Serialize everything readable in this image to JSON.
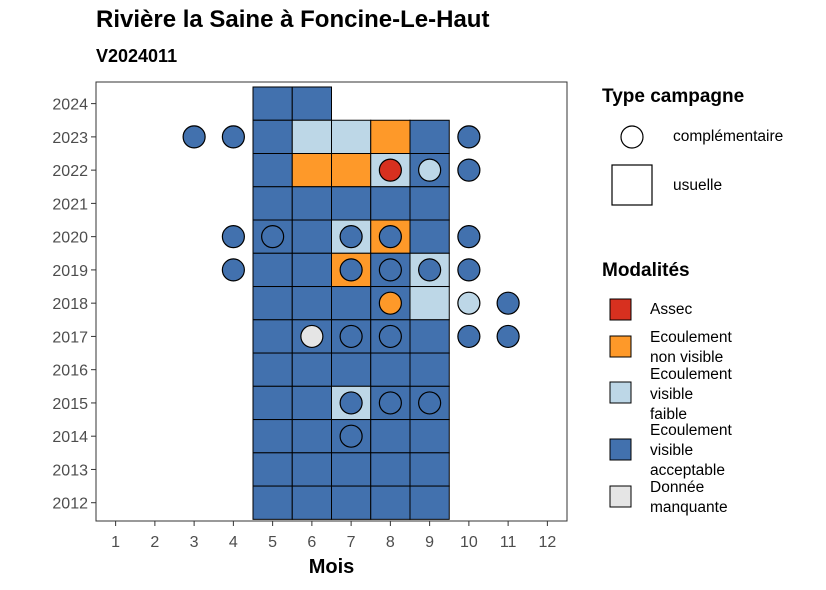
{
  "chart_data": {
    "type": "heatmap",
    "title": "Rivière la Saine à Foncine-Le-Haut",
    "subtitle": "V2024011",
    "xlabel": "Mois",
    "ylabel": "",
    "x_ticks": [
      1,
      2,
      3,
      4,
      5,
      6,
      7,
      8,
      9,
      10,
      11,
      12
    ],
    "y_ticks": [
      2012,
      2013,
      2014,
      2015,
      2016,
      2017,
      2018,
      2019,
      2020,
      2021,
      2022,
      2023,
      2024
    ],
    "xlim": [
      0.5,
      12.5
    ],
    "ylim": [
      2011.45,
      2024.65
    ],
    "grid": false,
    "legend_position": "right",
    "modalites": {
      "assec": {
        "label": "Assec",
        "color": "#d7301f"
      },
      "nv": {
        "label": "Ecoulement non visible",
        "color": "#fe9929"
      },
      "vf": {
        "label": "Ecoulement visible faible",
        "color": "#bdd7e7"
      },
      "va": {
        "label": "Ecoulement visible acceptable",
        "color": "#4271ae"
      },
      "dm": {
        "label": "Donnée manquante",
        "color": "#e5e5e5"
      }
    },
    "campagne_legend": {
      "title": "Type campagne",
      "items": [
        {
          "key": "complementaire",
          "label": "complémentaire",
          "shape": "circle"
        },
        {
          "key": "usuelle",
          "label": "usuelle",
          "shape": "square"
        }
      ]
    },
    "modalites_legend": {
      "title": "Modalités",
      "items": [
        {
          "key": "assec",
          "lines": [
            "Assec"
          ]
        },
        {
          "key": "nv",
          "lines": [
            "Ecoulement",
            "non visible"
          ]
        },
        {
          "key": "vf",
          "lines": [
            "Ecoulement",
            "visible",
            "faible"
          ]
        },
        {
          "key": "va",
          "lines": [
            "Ecoulement",
            "visible",
            "acceptable"
          ]
        },
        {
          "key": "dm",
          "lines": [
            "Donnée",
            "manquante"
          ]
        }
      ]
    },
    "usuelle": [
      {
        "year": 2024,
        "month": 5,
        "modalite": "va"
      },
      {
        "year": 2024,
        "month": 6,
        "modalite": "va"
      },
      {
        "year": 2023,
        "month": 5,
        "modalite": "va"
      },
      {
        "year": 2023,
        "month": 6,
        "modalite": "vf"
      },
      {
        "year": 2023,
        "month": 7,
        "modalite": "vf"
      },
      {
        "year": 2023,
        "month": 8,
        "modalite": "nv"
      },
      {
        "year": 2023,
        "month": 9,
        "modalite": "va"
      },
      {
        "year": 2022,
        "month": 5,
        "modalite": "va"
      },
      {
        "year": 2022,
        "month": 6,
        "modalite": "nv"
      },
      {
        "year": 2022,
        "month": 7,
        "modalite": "nv"
      },
      {
        "year": 2022,
        "month": 8,
        "modalite": "vf"
      },
      {
        "year": 2022,
        "month": 9,
        "modalite": "va"
      },
      {
        "year": 2021,
        "month": 5,
        "modalite": "va"
      },
      {
        "year": 2021,
        "month": 6,
        "modalite": "va"
      },
      {
        "year": 2021,
        "month": 7,
        "modalite": "va"
      },
      {
        "year": 2021,
        "month": 8,
        "modalite": "va"
      },
      {
        "year": 2021,
        "month": 9,
        "modalite": "va"
      },
      {
        "year": 2020,
        "month": 5,
        "modalite": "va"
      },
      {
        "year": 2020,
        "month": 6,
        "modalite": "va"
      },
      {
        "year": 2020,
        "month": 7,
        "modalite": "vf"
      },
      {
        "year": 2020,
        "month": 8,
        "modalite": "nv"
      },
      {
        "year": 2020,
        "month": 9,
        "modalite": "va"
      },
      {
        "year": 2019,
        "month": 5,
        "modalite": "va"
      },
      {
        "year": 2019,
        "month": 6,
        "modalite": "va"
      },
      {
        "year": 2019,
        "month": 7,
        "modalite": "nv"
      },
      {
        "year": 2019,
        "month": 8,
        "modalite": "va"
      },
      {
        "year": 2019,
        "month": 9,
        "modalite": "vf"
      },
      {
        "year": 2018,
        "month": 5,
        "modalite": "va"
      },
      {
        "year": 2018,
        "month": 6,
        "modalite": "va"
      },
      {
        "year": 2018,
        "month": 7,
        "modalite": "va"
      },
      {
        "year": 2018,
        "month": 8,
        "modalite": "va"
      },
      {
        "year": 2018,
        "month": 9,
        "modalite": "vf"
      },
      {
        "year": 2017,
        "month": 5,
        "modalite": "va"
      },
      {
        "year": 2017,
        "month": 6,
        "modalite": "va"
      },
      {
        "year": 2017,
        "month": 7,
        "modalite": "va"
      },
      {
        "year": 2017,
        "month": 8,
        "modalite": "va"
      },
      {
        "year": 2017,
        "month": 9,
        "modalite": "va"
      },
      {
        "year": 2016,
        "month": 5,
        "modalite": "va"
      },
      {
        "year": 2016,
        "month": 6,
        "modalite": "va"
      },
      {
        "year": 2016,
        "month": 7,
        "modalite": "va"
      },
      {
        "year": 2016,
        "month": 8,
        "modalite": "va"
      },
      {
        "year": 2016,
        "month": 9,
        "modalite": "va"
      },
      {
        "year": 2015,
        "month": 5,
        "modalite": "va"
      },
      {
        "year": 2015,
        "month": 6,
        "modalite": "va"
      },
      {
        "year": 2015,
        "month": 7,
        "modalite": "vf"
      },
      {
        "year": 2015,
        "month": 8,
        "modalite": "va"
      },
      {
        "year": 2015,
        "month": 9,
        "modalite": "va"
      },
      {
        "year": 2014,
        "month": 5,
        "modalite": "va"
      },
      {
        "year": 2014,
        "month": 6,
        "modalite": "va"
      },
      {
        "year": 2014,
        "month": 7,
        "modalite": "va"
      },
      {
        "year": 2014,
        "month": 8,
        "modalite": "va"
      },
      {
        "year": 2014,
        "month": 9,
        "modalite": "va"
      },
      {
        "year": 2013,
        "month": 5,
        "modalite": "va"
      },
      {
        "year": 2013,
        "month": 6,
        "modalite": "va"
      },
      {
        "year": 2013,
        "month": 7,
        "modalite": "va"
      },
      {
        "year": 2013,
        "month": 8,
        "modalite": "va"
      },
      {
        "year": 2013,
        "month": 9,
        "modalite": "va"
      },
      {
        "year": 2012,
        "month": 5,
        "modalite": "va"
      },
      {
        "year": 2012,
        "month": 6,
        "modalite": "va"
      },
      {
        "year": 2012,
        "month": 7,
        "modalite": "va"
      },
      {
        "year": 2012,
        "month": 8,
        "modalite": "va"
      },
      {
        "year": 2012,
        "month": 9,
        "modalite": "va"
      }
    ],
    "complementaire": [
      {
        "year": 2023,
        "month": 3,
        "modalite": "va"
      },
      {
        "year": 2023,
        "month": 4,
        "modalite": "va"
      },
      {
        "year": 2023,
        "month": 10,
        "modalite": "va"
      },
      {
        "year": 2022,
        "month": 8,
        "modalite": "assec"
      },
      {
        "year": 2022,
        "month": 9,
        "modalite": "vf"
      },
      {
        "year": 2022,
        "month": 10,
        "modalite": "va"
      },
      {
        "year": 2020,
        "month": 4,
        "modalite": "va"
      },
      {
        "year": 2020,
        "month": 5,
        "modalite": "va"
      },
      {
        "year": 2020,
        "month": 7,
        "modalite": "va"
      },
      {
        "year": 2020,
        "month": 8,
        "modalite": "va"
      },
      {
        "year": 2020,
        "month": 10,
        "modalite": "va"
      },
      {
        "year": 2019,
        "month": 4,
        "modalite": "va"
      },
      {
        "year": 2019,
        "month": 7,
        "modalite": "va"
      },
      {
        "year": 2019,
        "month": 8,
        "modalite": "va"
      },
      {
        "year": 2019,
        "month": 9,
        "modalite": "va"
      },
      {
        "year": 2019,
        "month": 10,
        "modalite": "va"
      },
      {
        "year": 2018,
        "month": 8,
        "modalite": "nv"
      },
      {
        "year": 2018,
        "month": 10,
        "modalite": "vf"
      },
      {
        "year": 2018,
        "month": 11,
        "modalite": "va"
      },
      {
        "year": 2017,
        "month": 6,
        "modalite": "dm"
      },
      {
        "year": 2017,
        "month": 7,
        "modalite": "va"
      },
      {
        "year": 2017,
        "month": 8,
        "modalite": "va"
      },
      {
        "year": 2017,
        "month": 10,
        "modalite": "va"
      },
      {
        "year": 2017,
        "month": 11,
        "modalite": "va"
      },
      {
        "year": 2015,
        "month": 7,
        "modalite": "va"
      },
      {
        "year": 2015,
        "month": 8,
        "modalite": "va"
      },
      {
        "year": 2015,
        "month": 9,
        "modalite": "va"
      },
      {
        "year": 2014,
        "month": 7,
        "modalite": "va"
      }
    ]
  }
}
